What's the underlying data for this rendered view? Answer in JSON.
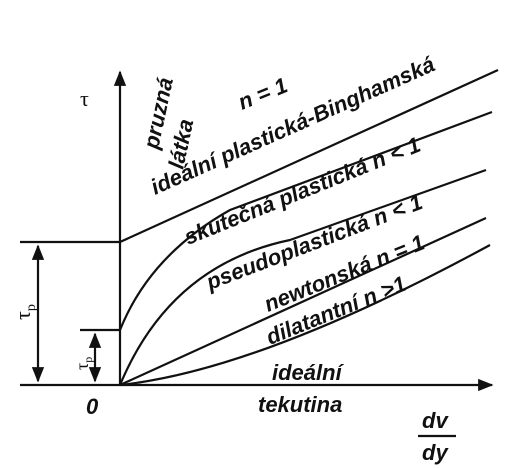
{
  "axes": {
    "y_symbol": "τ",
    "origin": "0",
    "x_numerator": "dv",
    "x_denominator": "dy"
  },
  "elastic": [
    "pruzná",
    "látka"
  ],
  "tau_p_large": {
    "symbol": "τ",
    "subscript": "p"
  },
  "tau_p_small": {
    "symbol": "τ",
    "subscript": "p"
  },
  "curves": [
    {
      "label": "ideální plastická-Binghamská",
      "note": "n = 1"
    },
    {
      "label": "skutečná plastická n < 1"
    },
    {
      "label": "pseudoplastická n < 1"
    },
    {
      "label": "newtonská n = 1"
    },
    {
      "label": "dilatantní n >1"
    }
  ],
  "ideal_fluid": [
    "ideální",
    "tekutina"
  ]
}
